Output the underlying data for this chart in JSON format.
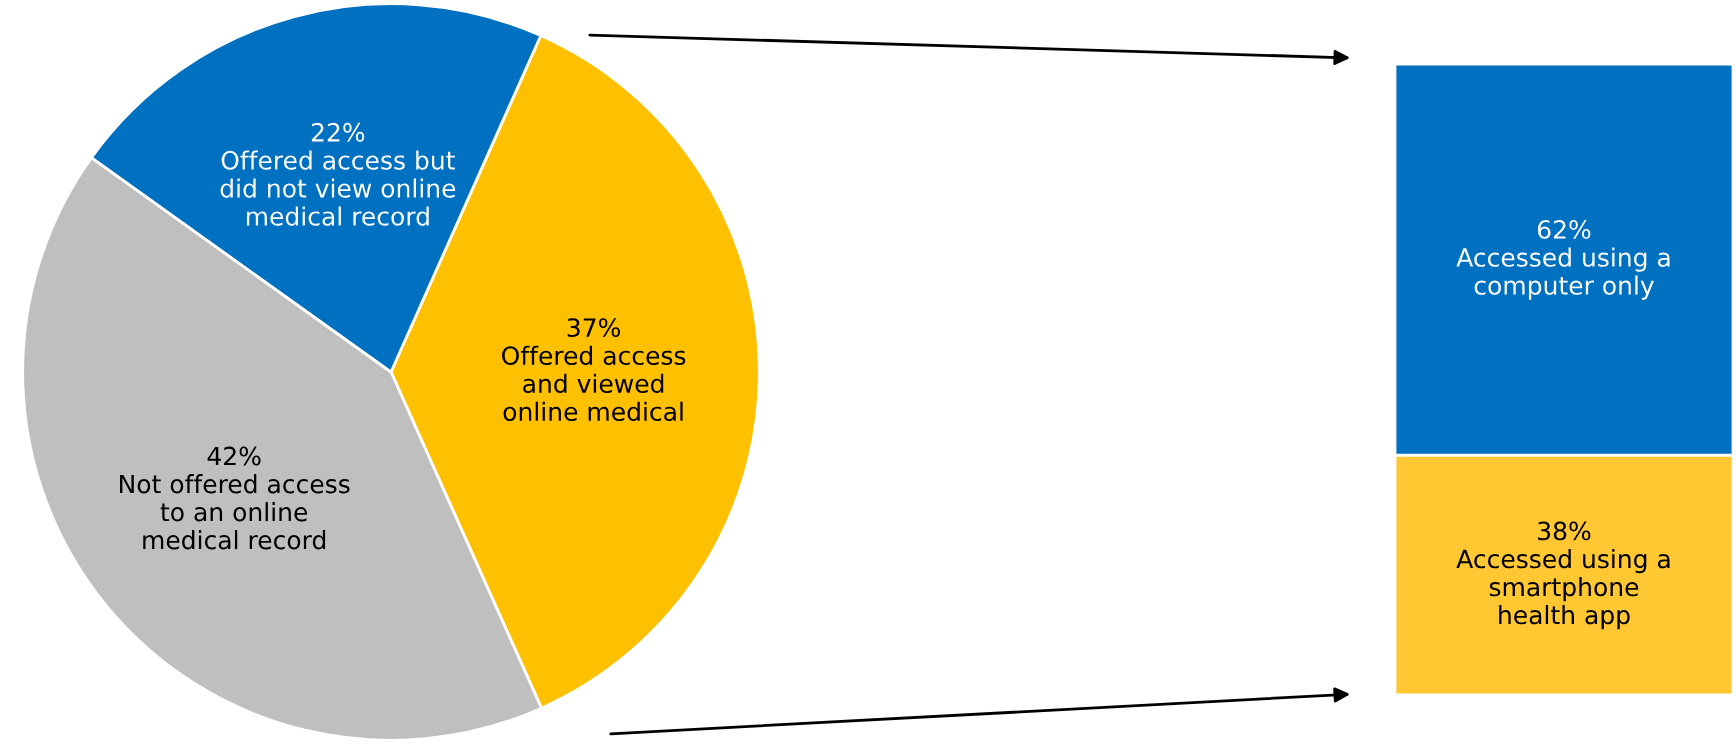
{
  "chart_data": [
    {
      "type": "pie",
      "categories": [
        "Offered access\nand viewed\nonline medical",
        "Not offered access\nto an online\nmedical record",
        "Offered access but\ndid not view online\nmedical record"
      ],
      "values": [
        37,
        42,
        22
      ],
      "value_labels": [
        "37%",
        "42%",
        "22%"
      ],
      "colors": [
        "#ffc000",
        "#bfbfbf",
        "#0070c0"
      ]
    },
    {
      "type": "bar",
      "stacked": true,
      "categories": [
        null
      ],
      "series": [
        {
          "name": "Accessed using a\nsmartphone\nhealth app",
          "color": "#ffc732",
          "values": [
            38
          ],
          "value_labels": [
            "38%"
          ]
        },
        {
          "name": "Accessed using a\ncomputer only",
          "color": "#0070c0",
          "values": [
            62
          ],
          "value_labels": [
            "62%"
          ]
        }
      ]
    }
  ]
}
